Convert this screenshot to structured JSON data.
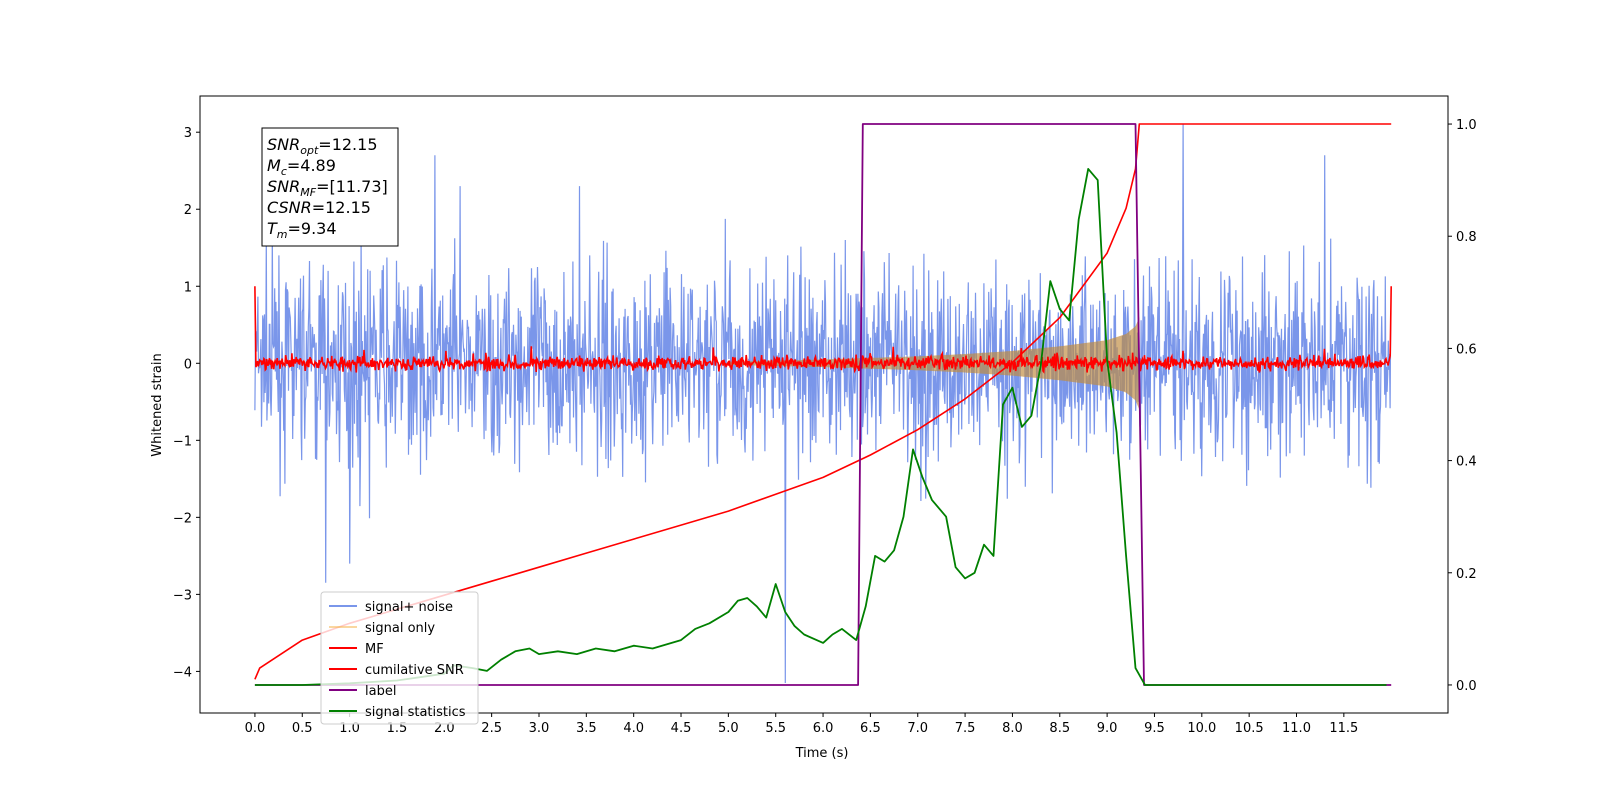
{
  "chart_data": {
    "type": "line",
    "xlabel": "Time (s)",
    "ylabel": "Whitened strain",
    "xlim": [
      -0.58,
      12.6
    ],
    "ylim": [
      -4.54,
      3.47
    ],
    "y2lim": [
      -0.05,
      1.05
    ],
    "xticks": [
      0.0,
      0.5,
      1.0,
      1.5,
      2.0,
      2.5,
      3.0,
      3.5,
      4.0,
      4.5,
      5.0,
      5.5,
      6.0,
      6.5,
      7.0,
      7.5,
      8.0,
      8.5,
      9.0,
      9.5,
      10.0,
      10.5,
      11.0,
      11.5
    ],
    "xtick_labels": [
      "0.0",
      "0.5",
      "1.0",
      "1.5",
      "2.0",
      "2.5",
      "3.0",
      "3.5",
      "4.0",
      "4.5",
      "5.0",
      "5.5",
      "6.0",
      "6.5",
      "7.0",
      "7.5",
      "8.0",
      "8.5",
      "9.0",
      "9.5",
      "10.0",
      "10.5",
      "11.0",
      "11.5"
    ],
    "yticks": [
      -4,
      -3,
      -2,
      -1,
      0,
      1,
      2,
      3
    ],
    "ytick_labels": [
      "−4",
      "−3",
      "−2",
      "−1",
      "0",
      "1",
      "2",
      "3"
    ],
    "y2ticks": [
      0.0,
      0.2,
      0.4,
      0.6,
      0.8,
      1.0
    ],
    "y2tick_labels": [
      "0.0",
      "0.2",
      "0.4",
      "0.6",
      "0.8",
      "1.0"
    ],
    "grid": false,
    "legend_position": "lower-left",
    "series": [
      {
        "name": "signal+ noise",
        "axis": "left",
        "color": "#4169e1",
        "style": "noise",
        "x_range": [
          0.0,
          12.0
        ],
        "amplitude_range": [
          -2.3,
          2.3
        ],
        "spikes": [
          [
            0.75,
            -2.85
          ],
          [
            1.0,
            -2.6
          ],
          [
            1.9,
            2.7
          ],
          [
            5.6,
            -4.15
          ],
          [
            9.8,
            3.1
          ],
          [
            11.3,
            2.7
          ]
        ]
      },
      {
        "name": "signal only",
        "axis": "left",
        "color": "#f5b041",
        "style": "envelope",
        "x": [
          5.0,
          6.0,
          6.5,
          7.0,
          7.5,
          8.0,
          8.5,
          9.0,
          9.2,
          9.3,
          9.34
        ],
        "amplitude": [
          0.02,
          0.05,
          0.07,
          0.09,
          0.12,
          0.16,
          0.22,
          0.3,
          0.38,
          0.48,
          0.6
        ]
      },
      {
        "name": "MF",
        "axis": "left",
        "color": "#ff0000",
        "style": "noise",
        "x_range": [
          0.0,
          12.0
        ],
        "amplitude_range": [
          -0.12,
          0.22
        ],
        "edge_values": [
          1.0,
          1.0
        ]
      },
      {
        "name": "cumilative SNR",
        "axis": "right",
        "color": "#ff0000",
        "style": "line",
        "x": [
          0.0,
          0.05,
          0.5,
          1.0,
          1.5,
          2.0,
          2.5,
          3.0,
          3.5,
          4.0,
          4.5,
          5.0,
          5.5,
          6.0,
          6.5,
          7.0,
          7.5,
          8.0,
          8.5,
          9.0,
          9.2,
          9.3,
          9.34,
          9.35,
          12.0
        ],
        "values": [
          0.01,
          0.03,
          0.08,
          0.11,
          0.135,
          0.16,
          0.185,
          0.21,
          0.235,
          0.26,
          0.285,
          0.31,
          0.34,
          0.37,
          0.41,
          0.455,
          0.51,
          0.575,
          0.655,
          0.77,
          0.85,
          0.92,
          1.0,
          1.0,
          1.0
        ]
      },
      {
        "name": "label",
        "axis": "right",
        "color": "#800080",
        "style": "line",
        "x": [
          0.0,
          6.37,
          6.42,
          9.3,
          9.39,
          12.0
        ],
        "values": [
          0.0,
          0.0,
          1.0,
          1.0,
          0.0,
          0.0
        ]
      },
      {
        "name": "signal statistics",
        "axis": "right",
        "color": "#008000",
        "style": "line",
        "x": [
          0.0,
          0.5,
          1.0,
          1.5,
          2.0,
          2.1,
          2.3,
          2.45,
          2.6,
          2.75,
          2.9,
          3.0,
          3.2,
          3.4,
          3.6,
          3.8,
          4.0,
          4.2,
          4.5,
          4.65,
          4.8,
          5.0,
          5.1,
          5.2,
          5.3,
          5.4,
          5.5,
          5.6,
          5.7,
          5.8,
          6.0,
          6.1,
          6.2,
          6.35,
          6.45,
          6.55,
          6.65,
          6.75,
          6.85,
          6.95,
          7.05,
          7.15,
          7.3,
          7.4,
          7.5,
          7.6,
          7.7,
          7.8,
          7.9,
          8.0,
          8.1,
          8.2,
          8.3,
          8.4,
          8.5,
          8.6,
          8.7,
          8.8,
          8.9,
          9.0,
          9.1,
          9.2,
          9.3,
          9.4,
          9.5,
          10.0,
          11.0,
          11.95
        ],
        "values": [
          0.0,
          0.0,
          0.003,
          0.008,
          0.02,
          0.035,
          0.03,
          0.025,
          0.045,
          0.06,
          0.065,
          0.055,
          0.06,
          0.055,
          0.065,
          0.06,
          0.07,
          0.065,
          0.08,
          0.1,
          0.11,
          0.13,
          0.15,
          0.155,
          0.14,
          0.12,
          0.18,
          0.13,
          0.105,
          0.09,
          0.075,
          0.09,
          0.1,
          0.08,
          0.14,
          0.23,
          0.22,
          0.24,
          0.3,
          0.42,
          0.37,
          0.33,
          0.3,
          0.21,
          0.19,
          0.2,
          0.25,
          0.23,
          0.5,
          0.53,
          0.46,
          0.48,
          0.57,
          0.72,
          0.67,
          0.65,
          0.83,
          0.92,
          0.9,
          0.58,
          0.45,
          0.23,
          0.03,
          0.0,
          0.0,
          0.0,
          0.0,
          0.0
        ]
      }
    ],
    "annotations": [
      {
        "base": "SNR",
        "sub": "opt",
        "text": "=12.15"
      },
      {
        "base": "M",
        "sub": "c",
        "text": "=4.89"
      },
      {
        "base": "SNR",
        "sub": "MF",
        "text": "=[11.73]"
      },
      {
        "base": "CSNR",
        "sub": "",
        "text": "=12.15"
      },
      {
        "base": "T",
        "sub": "m",
        "text": "=9.34"
      }
    ]
  }
}
